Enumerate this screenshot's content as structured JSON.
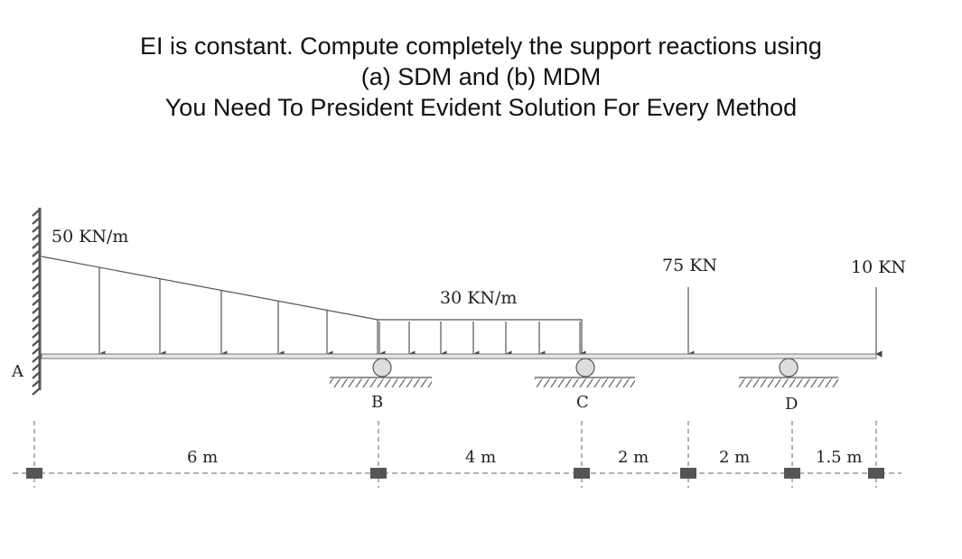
{
  "problem": {
    "line1": "EI is constant. Compute completely the support reactions using",
    "line2": "(a) SDM and (b) MDM",
    "line3": "You Need To President Evident Solution For Every Method"
  },
  "loads": {
    "triangular": "50 KN/m",
    "uniform": "30 KN/m",
    "point1": "75 KN",
    "point2": "10 KN"
  },
  "supports": {
    "A": "A",
    "B": "B",
    "C": "C",
    "D": "D"
  },
  "dimensions": {
    "AB": "6 m",
    "BC": "4 m",
    "C_P1": "2 m",
    "P1_D": "2 m",
    "D_end": "1.5 m"
  },
  "colors": {
    "beam_fill": "#e6e6e6",
    "wall": "#555555",
    "line": "#444444",
    "roller": "#dddddd",
    "marker": "#555555"
  }
}
